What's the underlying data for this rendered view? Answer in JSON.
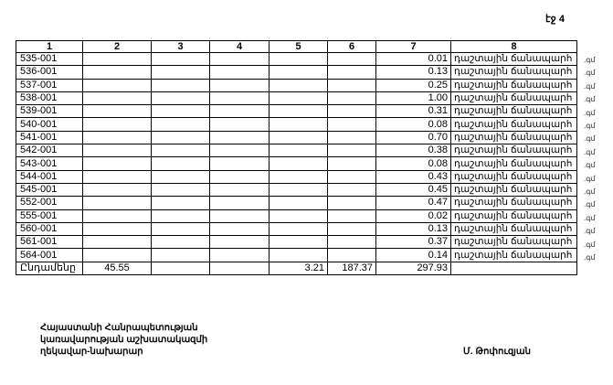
{
  "page_label": "էջ 4",
  "table": {
    "headers": [
      "1",
      "2",
      "3",
      "4",
      "5",
      "6",
      "7",
      "8"
    ],
    "rows": [
      {
        "code": "535-001",
        "c7": "0.01",
        "c8": "դաշտային ճանապարհ"
      },
      {
        "code": "536-001",
        "c7": "0.13",
        "c8": "դաշտային ճանապարհ"
      },
      {
        "code": "537-001",
        "c7": "0.25",
        "c8": "դաշտային ճանապարհ"
      },
      {
        "code": "538-001",
        "c7": "1.00",
        "c8": "դաշտային ճանապարհ"
      },
      {
        "code": "539-001",
        "c7": "0.31",
        "c8": "դաշտային ճանապարհ"
      },
      {
        "code": "540-001",
        "c7": "0.08",
        "c8": "դաշտային ճանապարհ"
      },
      {
        "code": "541-001",
        "c7": "0.70",
        "c8": "դաշտային ճանապարհ"
      },
      {
        "code": "542-001",
        "c7": "0.38",
        "c8": "դաշտային ճանապարհ"
      },
      {
        "code": "543-001",
        "c7": "0.08",
        "c8": "դաշտային ճանապարհ"
      },
      {
        "code": "544-001",
        "c7": "0.43",
        "c8": "դաշտային ճանապարհ"
      },
      {
        "code": "545-001",
        "c7": "0.45",
        "c8": "դաշտային ճանապարհ"
      },
      {
        "code": "552-001",
        "c7": "0.47",
        "c8": "դաշտային ճանապարհ"
      },
      {
        "code": "555-001",
        "c7": "0.02",
        "c8": "դաշտային ճանապարհ"
      },
      {
        "code": "560-001",
        "c7": "0.13",
        "c8": "դաշտային ճանապարհ"
      },
      {
        "code": "561-001",
        "c7": "0.37",
        "c8": "դաշտային ճանապարհ"
      },
      {
        "code": "564-001",
        "c7": "0.14",
        "c8": "դաշտային ճանապարհ"
      }
    ],
    "total": {
      "label": "Ընդամենը",
      "c2": "45.55",
      "c5": "3.21",
      "c6": "187.37",
      "c7": "297.93"
    }
  },
  "margin_fragment": ".գմ",
  "signature": {
    "line1": "Հայաստանի Հանրապետության",
    "line2": "կառավարության աշխատակազմի",
    "line3": "ղեկավար-նախարար",
    "name": "Մ. Թոփուզյան"
  }
}
